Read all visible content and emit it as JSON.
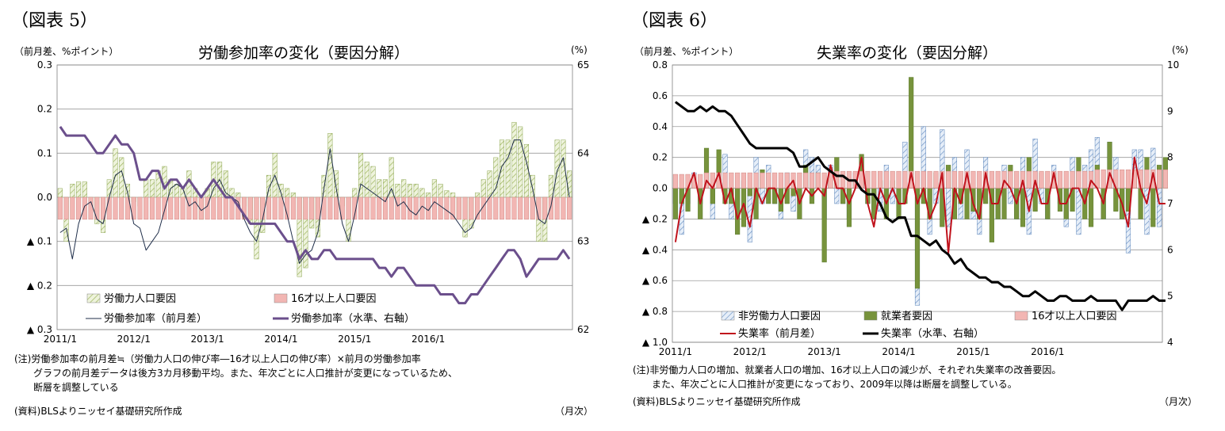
{
  "left": {
    "fig_label": "（図表 5）",
    "title": "労働参加率の変化（要因分解）",
    "unit_left": "（前月差、%ポイント）",
    "unit_right": "(%)",
    "notes": [
      "(注)労働参加率の前月差≒（労働力人口の伸び率―16才以上人口の伸び率）×前月の労働参加率",
      "　　グラフの前月差データは後方3カ月移動平均。また、年次ごとに人口推計が変更になっているため、",
      "　　断層を調整している"
    ],
    "source": "(資料)BLSよりニッセイ基礎研究所作成",
    "monthly": "（月次）",
    "chart_data": {
      "type": "bar",
      "x_tick_labels": [
        "2011/1",
        "2012/1",
        "2013/1",
        "2014/1",
        "2015/1",
        "2016/1"
      ],
      "y_left": {
        "range": [
          -0.3,
          0.3
        ],
        "ticks": [
          "0.3",
          "0.2",
          "0.1",
          "0.0",
          "▲ 0.1",
          "▲ 0.2",
          "▲ 0.3"
        ]
      },
      "y_right": {
        "range": [
          62,
          65
        ],
        "ticks": [
          "65",
          "64",
          "63",
          "62"
        ]
      },
      "grid": true,
      "legend_position": "bottom-left",
      "series": [
        {
          "name": "労働力人口要因",
          "kind": "bar",
          "color": "#d7e4bd",
          "values": [
            0.02,
            -0.1,
            0.03,
            0.035,
            0.035,
            -0.02,
            -0.06,
            -0.08,
            0.04,
            0.11,
            0.09,
            0.03,
            -0.01,
            -0.02,
            0.04,
            0.04,
            0.06,
            0.07,
            0.04,
            0.03,
            0.02,
            0.06,
            0.02,
            -0.05,
            0.02,
            0.08,
            0.08,
            0.06,
            0.02,
            0.01,
            -0.02,
            -0.06,
            -0.14,
            -0.08,
            0.05,
            0.1,
            0.03,
            0.02,
            0.01,
            -0.18,
            -0.16,
            -0.07,
            -0.09,
            0.05,
            0.145,
            0.06,
            -0.02,
            -0.1,
            0.02,
            0.1,
            0.08,
            0.07,
            0.04,
            0.04,
            0.09,
            0.03,
            0.04,
            0.03,
            0.03,
            0.02,
            0.01,
            0.04,
            0.03,
            0.015,
            0.01,
            -0.05,
            -0.09,
            -0.07,
            0.01,
            0.04,
            0.06,
            0.09,
            0.13,
            0.13,
            0.17,
            0.16,
            0.12,
            0.05,
            -0.1,
            -0.1,
            0.05,
            0.13,
            0.13,
            0.06
          ]
        },
        {
          "name": "16才以上人口要因",
          "kind": "bar",
          "color": "#f2b6b3",
          "values": [
            -0.05,
            -0.05,
            -0.05,
            -0.05,
            -0.05,
            -0.05,
            -0.05,
            -0.05,
            -0.05,
            -0.05,
            -0.05,
            -0.05,
            -0.05,
            -0.05,
            -0.05,
            -0.05,
            -0.05,
            -0.05,
            -0.05,
            -0.05,
            -0.05,
            -0.05,
            -0.05,
            -0.05,
            -0.05,
            -0.05,
            -0.05,
            -0.05,
            -0.05,
            -0.05,
            -0.05,
            -0.05,
            -0.05,
            -0.05,
            -0.05,
            -0.05,
            -0.05,
            -0.05,
            -0.05,
            -0.05,
            -0.05,
            -0.05,
            -0.05,
            -0.05,
            -0.05,
            -0.05,
            -0.05,
            -0.05,
            -0.05,
            -0.05,
            -0.05,
            -0.05,
            -0.05,
            -0.05,
            -0.05,
            -0.05,
            -0.05,
            -0.05,
            -0.05,
            -0.05,
            -0.05,
            -0.05,
            -0.05,
            -0.05,
            -0.05,
            -0.05,
            -0.05,
            -0.05,
            -0.05,
            -0.05,
            -0.05,
            -0.05,
            -0.05,
            -0.05,
            -0.05,
            -0.05,
            -0.05,
            -0.05,
            -0.05,
            -0.05,
            -0.05,
            -0.05,
            -0.05,
            -0.05
          ]
        },
        {
          "name": "労働参加率（前月差）",
          "kind": "line",
          "axis": "left",
          "color": "#1f2e4a",
          "values": [
            -0.08,
            -0.07,
            -0.14,
            -0.06,
            -0.02,
            -0.01,
            -0.05,
            -0.06,
            0.0,
            0.05,
            0.06,
            0.01,
            -0.06,
            -0.07,
            -0.12,
            -0.1,
            -0.08,
            -0.03,
            0.02,
            0.03,
            0.02,
            -0.02,
            -0.01,
            -0.03,
            -0.02,
            0.02,
            0.04,
            0.01,
            0.0,
            -0.01,
            -0.05,
            -0.08,
            -0.1,
            -0.05,
            0.02,
            0.05,
            0.01,
            -0.04,
            -0.1,
            -0.15,
            -0.13,
            -0.12,
            -0.08,
            0.02,
            0.11,
            0.02,
            -0.06,
            -0.1,
            -0.04,
            0.03,
            0.02,
            0.01,
            0.0,
            -0.01,
            0.02,
            -0.02,
            -0.01,
            -0.03,
            -0.04,
            -0.02,
            -0.03,
            -0.01,
            -0.02,
            -0.03,
            -0.04,
            -0.06,
            -0.08,
            -0.07,
            -0.04,
            -0.02,
            0.0,
            0.02,
            0.07,
            0.09,
            0.13,
            0.13,
            0.08,
            0.02,
            -0.05,
            -0.06,
            -0.02,
            0.06,
            0.09,
            0.0
          ]
        },
        {
          "name": "労働参加率（水準、右軸）",
          "kind": "line",
          "axis": "right",
          "color": "#6b4f8c",
          "values": [
            64.3,
            64.2,
            64.2,
            64.2,
            64.2,
            64.1,
            64.0,
            64.0,
            64.1,
            64.2,
            64.1,
            64.1,
            64.0,
            63.7,
            63.7,
            63.8,
            63.8,
            63.6,
            63.7,
            63.7,
            63.6,
            63.7,
            63.6,
            63.5,
            63.6,
            63.7,
            63.6,
            63.5,
            63.5,
            63.4,
            63.3,
            63.2,
            63.2,
            63.2,
            63.2,
            63.2,
            63.1,
            63.0,
            63.0,
            62.8,
            62.9,
            62.8,
            62.8,
            62.9,
            62.9,
            62.8,
            62.8,
            62.8,
            62.8,
            62.8,
            62.8,
            62.8,
            62.7,
            62.7,
            62.6,
            62.7,
            62.7,
            62.6,
            62.5,
            62.5,
            62.5,
            62.5,
            62.4,
            62.4,
            62.4,
            62.3,
            62.3,
            62.4,
            62.4,
            62.5,
            62.6,
            62.7,
            62.8,
            62.9,
            62.9,
            62.8,
            62.6,
            62.7,
            62.8,
            62.8,
            62.8,
            62.8,
            62.9,
            62.8
          ]
        }
      ]
    }
  },
  "right": {
    "fig_label": "（図表 6）",
    "title": "失業率の変化（要因分解）",
    "unit_left": "（前月差、%ポイント）",
    "unit_right": "(%)",
    "notes": [
      "(注)非労働力人口の増加、就業者人口の増加、16才以上人口の減少が、それぞれ失業率の改善要因。",
      "　　また、年次ごとに人口推計が変更になっており、2009年以降は断層を調整している。"
    ],
    "source": "(資料)BLSよりニッセイ基礎研究所作成",
    "monthly": "（月次）",
    "chart_data": {
      "type": "bar",
      "x_tick_labels": [
        "2011/1",
        "2012/1",
        "2013/1",
        "2014/1",
        "2015/1",
        "2016/1"
      ],
      "y_left": {
        "range": [
          -1.0,
          0.8
        ],
        "ticks": [
          "0.8",
          "0.6",
          "0.4",
          "0.2",
          "0.0",
          "▲ 0.2",
          "▲ 0.4",
          "▲ 0.6",
          "▲ 0.8",
          "▲ 1.0"
        ]
      },
      "y_right": {
        "range": [
          4,
          10
        ],
        "ticks": [
          "10",
          "9",
          "8",
          "7",
          "6",
          "5",
          "4"
        ]
      },
      "grid": true,
      "legend_position": "bottom-left",
      "series": [
        {
          "name": "非労働力人口要因",
          "kind": "bar",
          "color": "#b9cde5",
          "values": [
            -0.1,
            -0.3,
            -0.1,
            0.1,
            -0.1,
            0.1,
            -0.2,
            0.1,
            0.22,
            -0.2,
            -0.15,
            0.05,
            -0.35,
            0.2,
            -0.1,
            0.15,
            -0.1,
            -0.2,
            0.1,
            -0.15,
            -0.1,
            0.25,
            0.2,
            0.15,
            -0.2,
            0.15,
            -0.1,
            -0.1,
            -0.2,
            0.1,
            0.2,
            -0.1,
            -0.2,
            -0.15,
            0.15,
            -0.1,
            -0.1,
            0.3,
            0.1,
            -0.76,
            0.4,
            -0.3,
            -0.1,
            0.38,
            -0.25,
            0.2,
            -0.2,
            0.25,
            -0.2,
            -0.3,
            0.2,
            -0.1,
            -0.2,
            0.15,
            -0.1,
            -0.2,
            0.2,
            -0.3,
            0.32,
            -0.1,
            -0.2,
            0.15,
            -0.1,
            -0.25,
            0.2,
            -0.3,
            0.15,
            0.25,
            0.33,
            -0.2,
            0.3,
            0.2,
            -0.2,
            -0.42,
            0.25,
            0.25,
            -0.3,
            0.26,
            -0.25
          ]
        },
        {
          "name": "就業者要因",
          "kind": "bar",
          "color": "#77933c",
          "values": [
            -0.2,
            -0.1,
            -0.15,
            0.05,
            -0.2,
            0.26,
            -0.1,
            0.25,
            -0.1,
            -0.1,
            -0.3,
            -0.25,
            -0.05,
            -0.2,
            0.12,
            -0.1,
            -0.1,
            -0.15,
            -0.1,
            -0.05,
            -0.2,
            0.15,
            -0.1,
            0.1,
            -0.48,
            0.1,
            0.2,
            -0.1,
            -0.25,
            0.05,
            0.22,
            -0.1,
            -0.2,
            0.05,
            -0.2,
            0.05,
            -0.2,
            -0.1,
            0.72,
            -0.65,
            -0.1,
            -0.2,
            0.1,
            -0.25,
            0.15,
            -0.2,
            -0.1,
            -0.2,
            -0.15,
            -0.2,
            -0.1,
            -0.35,
            -0.2,
            -0.2,
            0.15,
            -0.2,
            -0.25,
            0.2,
            -0.15,
            0.1,
            -0.2,
            0.1,
            -0.15,
            -0.2,
            -0.15,
            0.2,
            -0.2,
            -0.25,
            0.15,
            -0.2,
            0.3,
            -0.15,
            -0.2,
            -0.15,
            0.1,
            -0.2,
            0.2,
            -0.25,
            0.15,
            0.2
          ]
        },
        {
          "name": "16才以上人口要因",
          "kind": "bar",
          "color": "#f2b6b3",
          "values": [
            0.09,
            0.09,
            0.09,
            0.09,
            0.09,
            0.1,
            0.1,
            0.1,
            0.1,
            0.1,
            0.1,
            0.1,
            0.1,
            0.1,
            0.1,
            0.1,
            0.1,
            0.1,
            0.1,
            0.1,
            0.1,
            0.1,
            0.1,
            0.1,
            0.1,
            0.1,
            0.11,
            0.11,
            0.11,
            0.11,
            0.11,
            0.11,
            0.11,
            0.11,
            0.11,
            0.11,
            0.11,
            0.11,
            0.11,
            0.11,
            0.11,
            0.11,
            0.11,
            0.11,
            0.11,
            0.11,
            0.11,
            0.11,
            0.11,
            0.11,
            0.11,
            0.11,
            0.11,
            0.11,
            0.11,
            0.11,
            0.11,
            0.11,
            0.11,
            0.11,
            0.11,
            0.11,
            0.11,
            0.11,
            0.11,
            0.11,
            0.11,
            0.11,
            0.12,
            0.12,
            0.12,
            0.12,
            0.12,
            0.12,
            0.12,
            0.12,
            0.12,
            0.12,
            0.12,
            0.12
          ]
        },
        {
          "name": "失業率（前月差）",
          "kind": "line",
          "axis": "left",
          "color": "#c0121c",
          "values": [
            -0.35,
            -0.1,
            0.0,
            0.1,
            -0.1,
            0.05,
            0.0,
            0.1,
            -0.1,
            0.0,
            -0.2,
            -0.1,
            -0.25,
            0.0,
            -0.1,
            0.0,
            0.0,
            -0.1,
            0.0,
            0.05,
            -0.1,
            0.0,
            -0.05,
            0.0,
            -0.05,
            0.15,
            0.0,
            0.0,
            -0.1,
            0.0,
            0.2,
            -0.1,
            -0.25,
            0.0,
            -0.1,
            0.0,
            -0.1,
            -0.1,
            0.1,
            -0.1,
            0.0,
            -0.2,
            -0.1,
            0.1,
            -0.42,
            0.0,
            -0.1,
            0.1,
            -0.1,
            -0.2,
            0.1,
            -0.1,
            -0.1,
            0.05,
            0.0,
            -0.1,
            0.05,
            -0.15,
            0.05,
            -0.1,
            -0.1,
            0.1,
            -0.1,
            -0.1,
            0.0,
            0.0,
            -0.1,
            0.05,
            0.0,
            -0.1,
            0.1,
            0.0,
            -0.1,
            -0.25,
            0.2,
            0.0,
            -0.1,
            0.1,
            -0.1,
            -0.1
          ]
        },
        {
          "name": "失業率（水準、右軸）",
          "kind": "line",
          "axis": "right",
          "color": "#000000",
          "values": [
            9.2,
            9.1,
            9.0,
            9.0,
            9.1,
            9.0,
            9.1,
            9.0,
            9.0,
            8.9,
            8.7,
            8.5,
            8.3,
            8.2,
            8.2,
            8.2,
            8.2,
            8.2,
            8.2,
            8.1,
            7.8,
            7.8,
            7.9,
            8.0,
            7.8,
            7.7,
            7.6,
            7.6,
            7.5,
            7.5,
            7.3,
            7.2,
            7.2,
            7.0,
            6.7,
            6.6,
            6.7,
            6.7,
            6.3,
            6.3,
            6.2,
            6.1,
            6.2,
            6.0,
            5.9,
            5.7,
            5.8,
            5.6,
            5.5,
            5.4,
            5.4,
            5.3,
            5.3,
            5.2,
            5.2,
            5.1,
            5.0,
            5.0,
            5.1,
            5.0,
            4.9,
            4.9,
            5.0,
            5.0,
            4.9,
            4.9,
            4.9,
            5.0,
            4.9,
            4.9,
            4.9,
            4.9,
            4.7,
            4.9,
            4.9,
            4.9,
            4.9,
            5.0,
            4.9,
            4.9
          ]
        }
      ]
    }
  }
}
